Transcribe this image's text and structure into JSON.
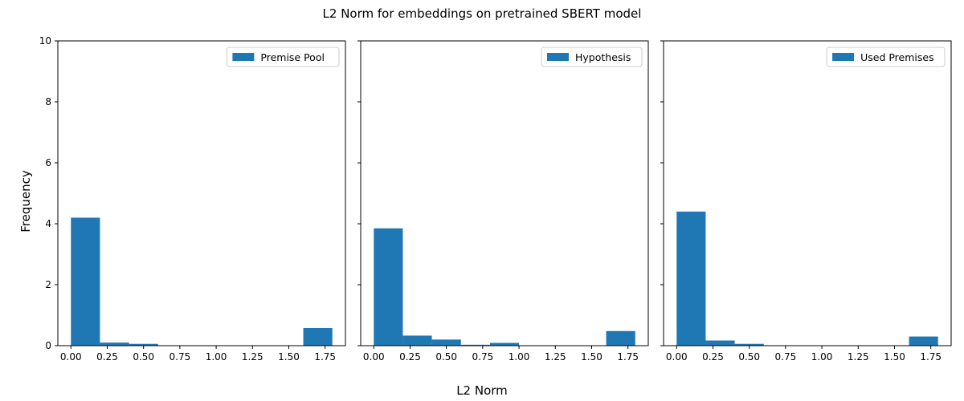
{
  "figure": {
    "title": "L2 Norm for embeddings on pretrained SBERT model",
    "xlabel": "L2 Norm",
    "ylabel": "Frequency"
  },
  "chart_data": [
    {
      "type": "bar",
      "legend": "Premise Pool",
      "legend_position": "top-right",
      "bin_edges": [
        0.0,
        0.2,
        0.4,
        0.6,
        0.8,
        1.0,
        1.2,
        1.4,
        1.6,
        1.8
      ],
      "values": [
        4.2,
        0.1,
        0.06,
        0.0,
        0.0,
        0.0,
        0.0,
        0.0,
        0.58
      ],
      "xlim": [
        -0.09,
        1.89
      ],
      "ylim": [
        0,
        10
      ],
      "xticks": [
        "0.00",
        "0.25",
        "0.50",
        "0.75",
        "1.00",
        "1.25",
        "1.50",
        "1.75"
      ],
      "yticks": [
        "0",
        "2",
        "4",
        "6",
        "8",
        "10"
      ],
      "color": "#1f77b4",
      "grid": false
    },
    {
      "type": "bar",
      "legend": "Hypothesis",
      "legend_position": "top-right",
      "bin_edges": [
        0.0,
        0.2,
        0.4,
        0.6,
        0.8,
        1.0,
        1.2,
        1.4,
        1.6,
        1.8
      ],
      "values": [
        3.85,
        0.33,
        0.2,
        0.03,
        0.09,
        0.0,
        0.0,
        0.0,
        0.48
      ],
      "xlim": [
        -0.09,
        1.89
      ],
      "ylim": [
        0,
        10
      ],
      "xticks": [
        "0.00",
        "0.25",
        "0.50",
        "0.75",
        "1.00",
        "1.25",
        "1.50",
        "1.75"
      ],
      "yticks": [
        "0",
        "2",
        "4",
        "6",
        "8",
        "10"
      ],
      "color": "#1f77b4",
      "grid": false
    },
    {
      "type": "bar",
      "legend": "Used Premises",
      "legend_position": "top-right",
      "bin_edges": [
        0.0,
        0.2,
        0.4,
        0.6,
        0.8,
        1.0,
        1.2,
        1.4,
        1.6,
        1.8
      ],
      "values": [
        4.4,
        0.17,
        0.06,
        0.0,
        0.0,
        0.0,
        0.0,
        0.0,
        0.3
      ],
      "xlim": [
        -0.09,
        1.89
      ],
      "ylim": [
        0,
        10
      ],
      "xticks": [
        "0.00",
        "0.25",
        "0.50",
        "0.75",
        "1.00",
        "1.25",
        "1.50",
        "1.75"
      ],
      "yticks": [
        "0",
        "2",
        "4",
        "6",
        "8",
        "10"
      ],
      "color": "#1f77b4",
      "grid": false
    }
  ]
}
